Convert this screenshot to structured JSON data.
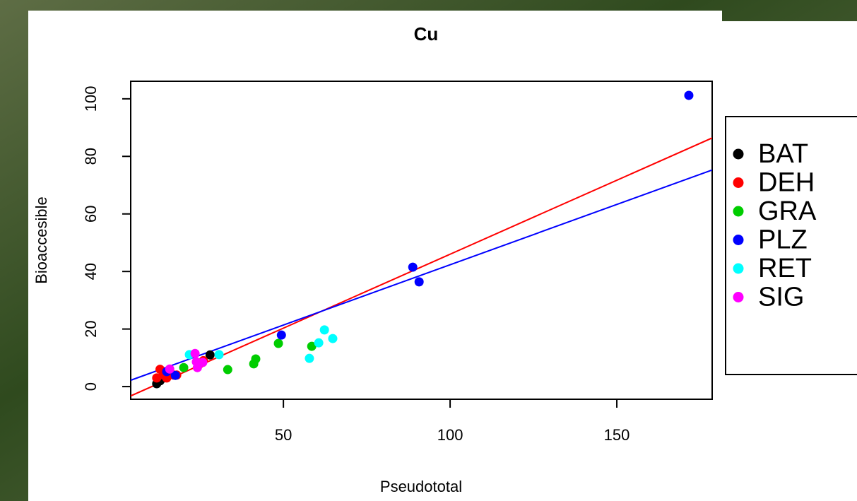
{
  "chart_data": {
    "type": "scatter",
    "title": "Cu",
    "x_label": "Pseudototal",
    "y_label": "Bioaccesible",
    "xlim": [
      4.2,
      178.6
    ],
    "ylim": [
      -4.4,
      106.1
    ],
    "xticks": [
      50,
      100,
      150
    ],
    "yticks": [
      0,
      20,
      40,
      60,
      80,
      100
    ],
    "legend": "outside right",
    "series": [
      {
        "name": "BAT",
        "color": "#000000",
        "x": [
          12,
          13,
          14,
          28
        ],
        "values": [
          1,
          2,
          3,
          11
        ]
      },
      {
        "name": "DEH",
        "color": "#ff0000",
        "x": [
          12,
          13,
          14,
          14,
          15,
          16,
          17,
          18,
          25,
          26
        ],
        "values": [
          3,
          6,
          4,
          5,
          3,
          5,
          4,
          4,
          8,
          9
        ]
      },
      {
        "name": "GRA",
        "color": "#00cd00",
        "x": [
          20.1,
          33.3,
          41.1,
          41.7,
          48.5,
          58.5
        ],
        "values": [
          6.6,
          5.9,
          7.9,
          9.6,
          15,
          14
        ]
      },
      {
        "name": "PLZ",
        "color": "#0000ff",
        "x": [
          15,
          17.6,
          49.4,
          88.8,
          90.7,
          171.6
        ],
        "values": [
          5.2,
          3.9,
          17.9,
          41.5,
          36.4,
          101.2
        ]
      },
      {
        "name": "RET",
        "color": "#00ffff",
        "x": [
          21.8,
          30.7,
          57.8,
          60.6,
          62.3,
          64.8
        ],
        "values": [
          11.1,
          11.1,
          9.8,
          15.2,
          19.7,
          16.7
        ]
      },
      {
        "name": "SIG",
        "color": "#ff00ff",
        "x": [
          15.9,
          23.5,
          23.9,
          24.2,
          25.8
        ],
        "values": [
          6.1,
          11.5,
          8.6,
          6.6,
          8.4
        ]
      }
    ],
    "lines": [
      {
        "color": "#ff0000",
        "intercept": -5.4,
        "slope": 0.514
      },
      {
        "color": "#0000ff",
        "intercept": 0.44,
        "slope": 0.419
      }
    ]
  }
}
